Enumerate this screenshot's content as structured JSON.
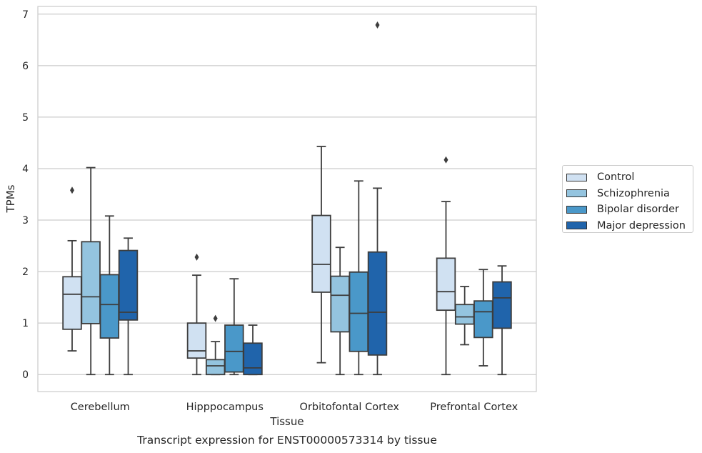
{
  "chart_data": {
    "type": "box",
    "title": "Transcript expression for ENST00000573314 by tissue",
    "xlabel": "Tissue",
    "ylabel": "TPMs",
    "ylim": [
      -0.33,
      7.15
    ],
    "yticks": [
      0,
      1,
      2,
      3,
      4,
      5,
      6,
      7
    ],
    "grid": true,
    "legend_position": "right",
    "categories": [
      "Cerebellum",
      "Hipppocampus",
      "Orbitofontal Cortex",
      "Prefrontal Cortex"
    ],
    "series": [
      {
        "name": "Control",
        "color": "#d0e1f2",
        "boxes": [
          {
            "whisker_low": 0.46,
            "q1": 0.88,
            "median": 1.56,
            "q3": 1.9,
            "whisker_high": 2.6,
            "outliers": [
              3.58
            ]
          },
          {
            "whisker_low": 0.0,
            "q1": 0.32,
            "median": 0.46,
            "q3": 1.0,
            "whisker_high": 1.93,
            "outliers": [
              2.28
            ]
          },
          {
            "whisker_low": 0.23,
            "q1": 1.6,
            "median": 2.14,
            "q3": 3.09,
            "whisker_high": 4.43,
            "outliers": []
          },
          {
            "whisker_low": 0.0,
            "q1": 1.25,
            "median": 1.61,
            "q3": 2.26,
            "whisker_high": 3.36,
            "outliers": [
              4.17
            ]
          }
        ]
      },
      {
        "name": "Schizophrenia",
        "color": "#94c4df",
        "boxes": [
          {
            "whisker_low": 0.0,
            "q1": 0.99,
            "median": 1.51,
            "q3": 2.58,
            "whisker_high": 4.02,
            "outliers": []
          },
          {
            "whisker_low": 0.0,
            "q1": 0.0,
            "median": 0.17,
            "q3": 0.29,
            "whisker_high": 0.64,
            "outliers": [
              1.09
            ]
          },
          {
            "whisker_low": 0.0,
            "q1": 0.83,
            "median": 1.54,
            "q3": 1.91,
            "whisker_high": 2.47,
            "outliers": []
          },
          {
            "whisker_low": 0.58,
            "q1": 0.98,
            "median": 1.12,
            "q3": 1.36,
            "whisker_high": 1.71,
            "outliers": []
          }
        ]
      },
      {
        "name": "Bipolar disorder",
        "color": "#4a98c9",
        "boxes": [
          {
            "whisker_low": 0.0,
            "q1": 0.71,
            "median": 1.36,
            "q3": 1.94,
            "whisker_high": 3.08,
            "outliers": []
          },
          {
            "whisker_low": 0.0,
            "q1": 0.05,
            "median": 0.45,
            "q3": 0.96,
            "whisker_high": 1.86,
            "outliers": []
          },
          {
            "whisker_low": 0.0,
            "q1": 0.45,
            "median": 1.19,
            "q3": 1.99,
            "whisker_high": 3.76,
            "outliers": []
          },
          {
            "whisker_low": 0.17,
            "q1": 0.72,
            "median": 1.22,
            "q3": 1.43,
            "whisker_high": 2.04,
            "outliers": []
          }
        ]
      },
      {
        "name": "Major depression",
        "color": "#2064ab",
        "boxes": [
          {
            "whisker_low": 0.0,
            "q1": 1.06,
            "median": 1.21,
            "q3": 2.41,
            "whisker_high": 2.65,
            "outliers": []
          },
          {
            "whisker_low": 0.0,
            "q1": 0.0,
            "median": 0.13,
            "q3": 0.61,
            "whisker_high": 0.96,
            "outliers": []
          },
          {
            "whisker_low": 0.0,
            "q1": 0.38,
            "median": 1.21,
            "q3": 2.38,
            "whisker_high": 3.62,
            "outliers": [
              6.79
            ]
          },
          {
            "whisker_low": 0.0,
            "q1": 0.9,
            "median": 1.49,
            "q3": 1.8,
            "whisker_high": 2.11,
            "outliers": []
          }
        ]
      }
    ]
  }
}
